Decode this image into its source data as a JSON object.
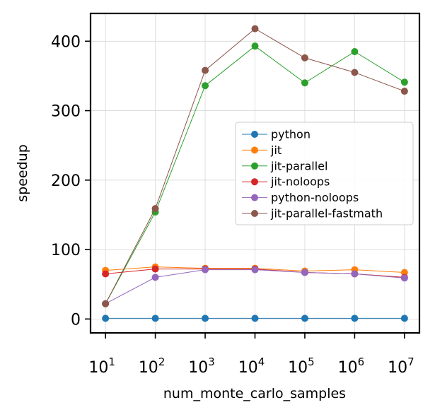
{
  "chart_data": {
    "type": "line",
    "title": "",
    "xlabel": "num_monte_carlo_samples",
    "ylabel": "speedup",
    "xscale": "log",
    "x": [
      10,
      100,
      1000,
      10000,
      100000,
      1000000,
      10000000
    ],
    "x_tick_labels": [
      {
        "base": "10",
        "exp": "1"
      },
      {
        "base": "10",
        "exp": "2"
      },
      {
        "base": "10",
        "exp": "3"
      },
      {
        "base": "10",
        "exp": "4"
      },
      {
        "base": "10",
        "exp": "5"
      },
      {
        "base": "10",
        "exp": "6"
      },
      {
        "base": "10",
        "exp": "7"
      }
    ],
    "y_ticks": [
      0,
      100,
      200,
      300,
      400
    ],
    "y_tick_labels": [
      "0",
      "100",
      "200",
      "300",
      "400"
    ],
    "ylim": [
      -20,
      440
    ],
    "grid": true,
    "legend_position": "center-right",
    "series": [
      {
        "name": "python",
        "color": "#1f77b4",
        "values": [
          1,
          1,
          1,
          1,
          1,
          1,
          1
        ]
      },
      {
        "name": "jit",
        "color": "#ff7f0e",
        "values": [
          70,
          75,
          73,
          73,
          69,
          71,
          67
        ]
      },
      {
        "name": "jit-parallel",
        "color": "#2ca02c",
        "values": [
          22,
          154,
          336,
          393,
          340,
          385,
          341
        ]
      },
      {
        "name": "jit-noloops",
        "color": "#d62728",
        "values": [
          65,
          72,
          72,
          72,
          67,
          65,
          60
        ]
      },
      {
        "name": "python-noloops",
        "color": "#9467bd",
        "values": [
          22,
          60,
          71,
          71,
          67,
          65,
          59
        ]
      },
      {
        "name": "jit-parallel-fastmath",
        "color": "#8c564b",
        "values": [
          22,
          159,
          358,
          418,
          376,
          355,
          328
        ]
      }
    ]
  }
}
